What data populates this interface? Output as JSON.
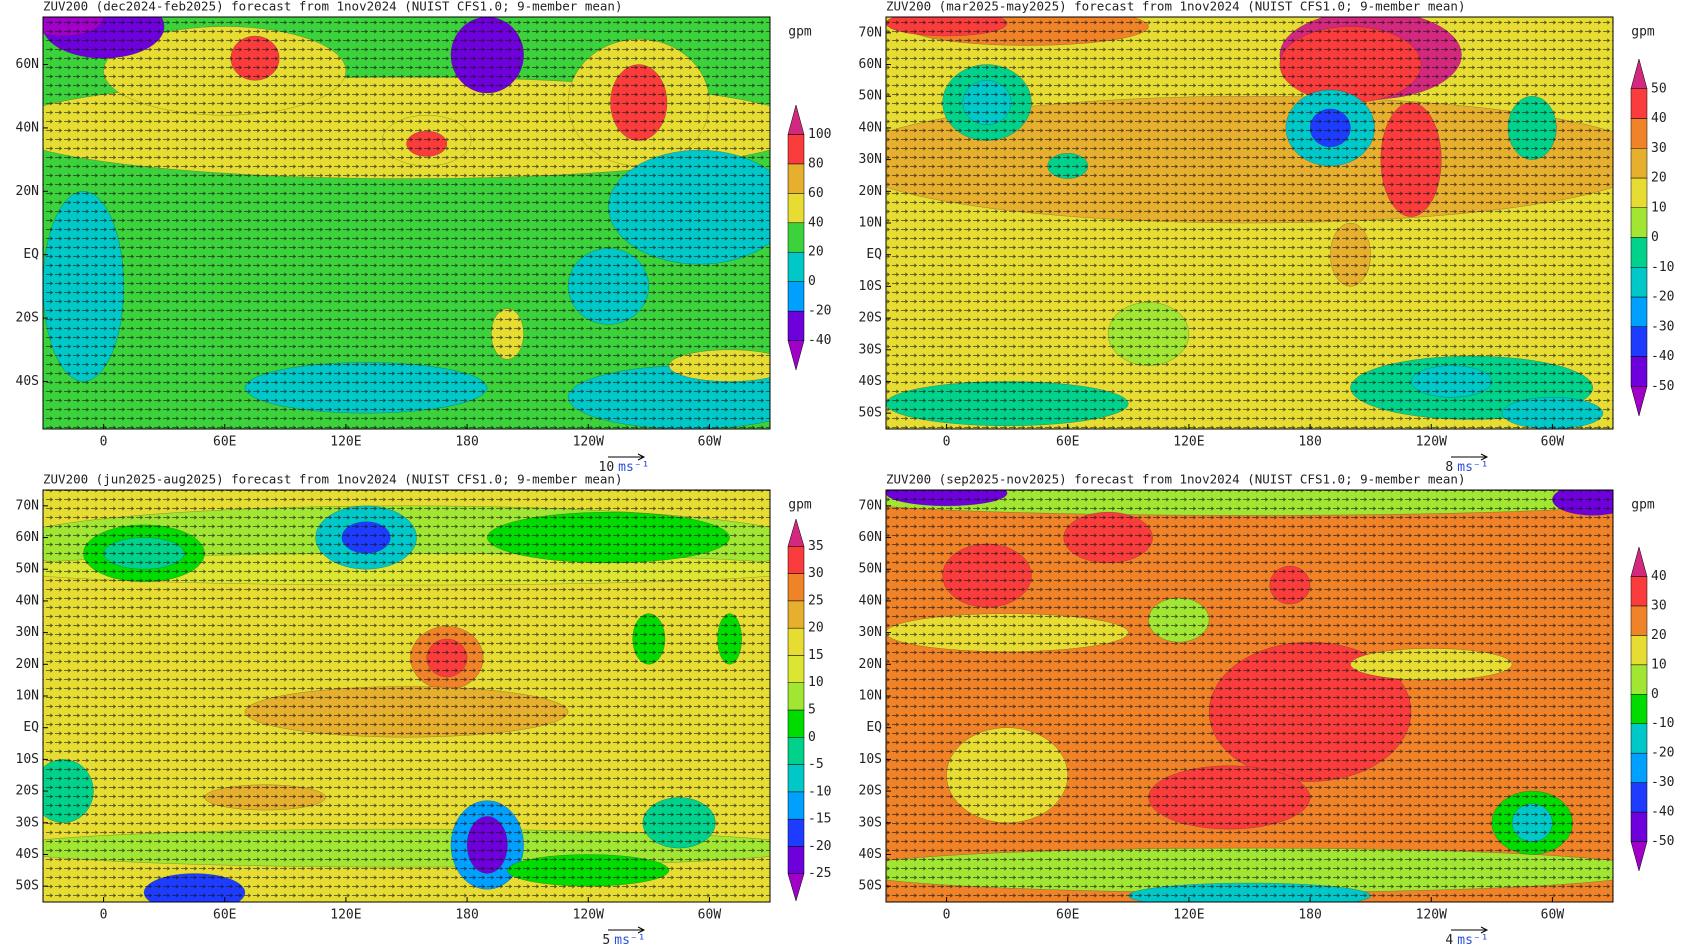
{
  "panels": [
    {
      "title": "ZUV200 (dec2024-feb2025) forecast from 1nov2024 (NUIST CFS1.0; 9-member mean)",
      "unit": "gpm",
      "xlim": [
        -30,
        330
      ],
      "ylim": [
        -55,
        75
      ],
      "lat_ticks": [
        {
          "value": 60,
          "label": "60N"
        },
        {
          "value": 40,
          "label": "40N"
        },
        {
          "value": 20,
          "label": "20N"
        },
        {
          "value": 0,
          "label": "EQ"
        },
        {
          "value": -20,
          "label": "20S"
        },
        {
          "value": -40,
          "label": "40S"
        }
      ],
      "lon_ticks": [
        0,
        {
          "value": 60,
          "label": "60E"
        },
        {
          "value": 120,
          "label": "120E"
        },
        180,
        {
          "value": 240,
          "label": "120W"
        },
        {
          "value": 300,
          "label": "60W"
        }
      ],
      "levels": [
        -40,
        -20,
        0,
        20,
        40,
        60,
        80,
        100
      ],
      "colors": [
        "#a000c8",
        "#6e00dc",
        "#00a0ff",
        "#00c8c8",
        "#3cd23c",
        "#e6dc32",
        "#e6af2d",
        "#fa3c3c",
        "#d2287e"
      ],
      "vector_ref": {
        "value": 10,
        "unit": "ms⁻¹"
      }
    },
    {
      "title": "ZUV200 (mar2025-may2025) forecast from 1nov2024 (NUIST CFS1.0; 9-member mean)",
      "unit": "gpm",
      "xlim": [
        -30,
        330
      ],
      "ylim": [
        -55,
        75
      ],
      "lat_ticks": [
        {
          "value": 70,
          "label": "70N"
        },
        {
          "value": 60,
          "label": "60N"
        },
        {
          "value": 50,
          "label": "50N"
        },
        {
          "value": 40,
          "label": "40N"
        },
        {
          "value": 30,
          "label": "30N"
        },
        {
          "value": 20,
          "label": "20N"
        },
        {
          "value": 10,
          "label": "10N"
        },
        {
          "value": 0,
          "label": "EQ"
        },
        {
          "value": -10,
          "label": "10S"
        },
        {
          "value": -20,
          "label": "20S"
        },
        {
          "value": -30,
          "label": "30S"
        },
        {
          "value": -40,
          "label": "40S"
        },
        {
          "value": -50,
          "label": "50S"
        }
      ],
      "lon_ticks": [
        0,
        {
          "value": 60,
          "label": "60E"
        },
        {
          "value": 120,
          "label": "120E"
        },
        180,
        {
          "value": 240,
          "label": "120W"
        },
        {
          "value": 300,
          "label": "60W"
        }
      ],
      "levels": [
        -50,
        -40,
        -30,
        -20,
        -10,
        0,
        10,
        20,
        30,
        40,
        50
      ],
      "colors": [
        "#a000c8",
        "#6e00dc",
        "#1e3cff",
        "#00a0ff",
        "#00c8c8",
        "#00d28c",
        "#a0e632",
        "#e6dc32",
        "#e6af2d",
        "#f08228",
        "#fa3c3c",
        "#d2287e"
      ],
      "vector_ref": {
        "value": 8,
        "unit": "ms⁻¹"
      }
    },
    {
      "title": "ZUV200 (jun2025-aug2025) forecast from 1nov2024 (NUIST CFS1.0; 9-member mean)",
      "unit": "gpm",
      "xlim": [
        -30,
        330
      ],
      "ylim": [
        -55,
        75
      ],
      "lat_ticks": [
        {
          "value": 70,
          "label": "70N"
        },
        {
          "value": 60,
          "label": "60N"
        },
        {
          "value": 50,
          "label": "50N"
        },
        {
          "value": 40,
          "label": "40N"
        },
        {
          "value": 30,
          "label": "30N"
        },
        {
          "value": 20,
          "label": "20N"
        },
        {
          "value": 10,
          "label": "10N"
        },
        {
          "value": 0,
          "label": "EQ"
        },
        {
          "value": -10,
          "label": "10S"
        },
        {
          "value": -20,
          "label": "20S"
        },
        {
          "value": -30,
          "label": "30S"
        },
        {
          "value": -40,
          "label": "40S"
        },
        {
          "value": -50,
          "label": "50S"
        }
      ],
      "lon_ticks": [
        0,
        {
          "value": 60,
          "label": "60E"
        },
        {
          "value": 120,
          "label": "120E"
        },
        180,
        {
          "value": 240,
          "label": "120W"
        },
        {
          "value": 300,
          "label": "60W"
        }
      ],
      "levels": [
        -25,
        -20,
        -15,
        -10,
        -5,
        0,
        5,
        10,
        15,
        20,
        25,
        30,
        35
      ],
      "colors": [
        "#a000c8",
        "#6e00dc",
        "#1e3cff",
        "#00a0ff",
        "#00c8c8",
        "#00d28c",
        "#00dc00",
        "#a0e632",
        "#dce632",
        "#e6dc32",
        "#e6af2d",
        "#f08228",
        "#fa3c3c",
        "#d2287e"
      ],
      "vector_ref": {
        "value": 5,
        "unit": "ms⁻¹"
      }
    },
    {
      "title": "ZUV200 (sep2025-nov2025) forecast from 1nov2024 (NUIST CFS1.0; 9-member mean)",
      "unit": "gpm",
      "xlim": [
        -30,
        330
      ],
      "ylim": [
        -55,
        75
      ],
      "lat_ticks": [
        {
          "value": 70,
          "label": "70N"
        },
        {
          "value": 60,
          "label": "60N"
        },
        {
          "value": 50,
          "label": "50N"
        },
        {
          "value": 40,
          "label": "40N"
        },
        {
          "value": 30,
          "label": "30N"
        },
        {
          "value": 20,
          "label": "20N"
        },
        {
          "value": 10,
          "label": "10N"
        },
        {
          "value": 0,
          "label": "EQ"
        },
        {
          "value": -10,
          "label": "10S"
        },
        {
          "value": -20,
          "label": "20S"
        },
        {
          "value": -30,
          "label": "30S"
        },
        {
          "value": -40,
          "label": "40S"
        },
        {
          "value": -50,
          "label": "50S"
        }
      ],
      "lon_ticks": [
        0,
        {
          "value": 60,
          "label": "60E"
        },
        {
          "value": 120,
          "label": "120E"
        },
        180,
        {
          "value": 240,
          "label": "120W"
        },
        {
          "value": 300,
          "label": "60W"
        }
      ],
      "levels": [
        -50,
        -40,
        -30,
        -20,
        -10,
        0,
        10,
        20,
        30,
        40
      ],
      "colors": [
        "#a000c8",
        "#6e00dc",
        "#1e3cff",
        "#00a0ff",
        "#00c8c8",
        "#00dc00",
        "#a0e632",
        "#e6dc32",
        "#f08228",
        "#fa3c3c",
        "#d2287e"
      ],
      "vector_ref": {
        "value": 4,
        "unit": "ms⁻¹"
      }
    }
  ]
}
